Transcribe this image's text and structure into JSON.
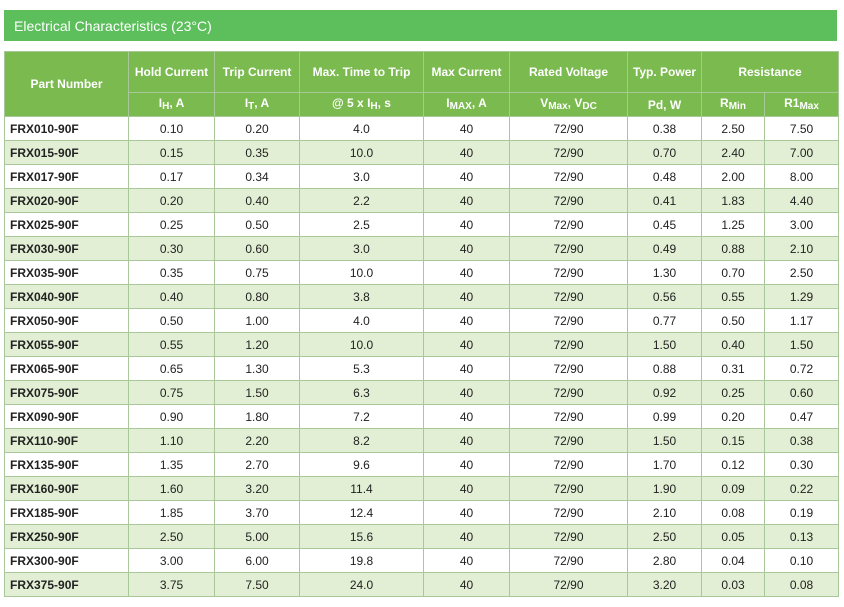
{
  "title": "Electrical Characteristics (23°C)",
  "headers": {
    "part": "Part Number",
    "hold": "Hold Current",
    "trip": "Trip Current",
    "time": "Max. Time to Trip",
    "imax": "Max Current",
    "rated": "Rated Voltage",
    "power": "Typ. Power",
    "resistance": "Resistance"
  },
  "units": {
    "hold": {
      "main": "I",
      "sub": "H",
      "rest": ", A"
    },
    "trip": {
      "main": "I",
      "sub": "T",
      "rest": ", A"
    },
    "time": {
      "main": "@ 5 x I",
      "sub": "H",
      "rest": ", s"
    },
    "imax": {
      "main": "I",
      "sub": "MAX",
      "rest": ", A"
    },
    "rated": {
      "main": "V",
      "sub": "Max",
      "rest": ", V",
      "sub2": "DC"
    },
    "power": {
      "main": "Pd, W",
      "sub": "",
      "rest": ""
    },
    "rmin": {
      "main": "R",
      "sub": "Min",
      "rest": ""
    },
    "r1max": {
      "main": "R1",
      "sub": "Max",
      "rest": ""
    }
  },
  "rows": [
    {
      "part": "FRX010-90F",
      "ih": "0.10",
      "it": "0.20",
      "t": "4.0",
      "imax": "40",
      "v": "72/90",
      "pd": "0.38",
      "rmin": "2.50",
      "r1max": "7.50"
    },
    {
      "part": "FRX015-90F",
      "ih": "0.15",
      "it": "0.35",
      "t": "10.0",
      "imax": "40",
      "v": "72/90",
      "pd": "0.70",
      "rmin": "2.40",
      "r1max": "7.00"
    },
    {
      "part": "FRX017-90F",
      "ih": "0.17",
      "it": "0.34",
      "t": "3.0",
      "imax": "40",
      "v": "72/90",
      "pd": "0.48",
      "rmin": "2.00",
      "r1max": "8.00"
    },
    {
      "part": "FRX020-90F",
      "ih": "0.20",
      "it": "0.40",
      "t": "2.2",
      "imax": "40",
      "v": "72/90",
      "pd": "0.41",
      "rmin": "1.83",
      "r1max": "4.40"
    },
    {
      "part": "FRX025-90F",
      "ih": "0.25",
      "it": "0.50",
      "t": "2.5",
      "imax": "40",
      "v": "72/90",
      "pd": "0.45",
      "rmin": "1.25",
      "r1max": "3.00"
    },
    {
      "part": "FRX030-90F",
      "ih": "0.30",
      "it": "0.60",
      "t": "3.0",
      "imax": "40",
      "v": "72/90",
      "pd": "0.49",
      "rmin": "0.88",
      "r1max": "2.10"
    },
    {
      "part": "FRX035-90F",
      "ih": "0.35",
      "it": "0.75",
      "t": "10.0",
      "imax": "40",
      "v": "72/90",
      "pd": "1.30",
      "rmin": "0.70",
      "r1max": "2.50"
    },
    {
      "part": "FRX040-90F",
      "ih": "0.40",
      "it": "0.80",
      "t": "3.8",
      "imax": "40",
      "v": "72/90",
      "pd": "0.56",
      "rmin": "0.55",
      "r1max": "1.29"
    },
    {
      "part": "FRX050-90F",
      "ih": "0.50",
      "it": "1.00",
      "t": "4.0",
      "imax": "40",
      "v": "72/90",
      "pd": "0.77",
      "rmin": "0.50",
      "r1max": "1.17"
    },
    {
      "part": "FRX055-90F",
      "ih": "0.55",
      "it": "1.20",
      "t": "10.0",
      "imax": "40",
      "v": "72/90",
      "pd": "1.50",
      "rmin": "0.40",
      "r1max": "1.50"
    },
    {
      "part": "FRX065-90F",
      "ih": "0.65",
      "it": "1.30",
      "t": "5.3",
      "imax": "40",
      "v": "72/90",
      "pd": "0.88",
      "rmin": "0.31",
      "r1max": "0.72"
    },
    {
      "part": "FRX075-90F",
      "ih": "0.75",
      "it": "1.50",
      "t": "6.3",
      "imax": "40",
      "v": "72/90",
      "pd": "0.92",
      "rmin": "0.25",
      "r1max": "0.60"
    },
    {
      "part": "FRX090-90F",
      "ih": "0.90",
      "it": "1.80",
      "t": "7.2",
      "imax": "40",
      "v": "72/90",
      "pd": "0.99",
      "rmin": "0.20",
      "r1max": "0.47"
    },
    {
      "part": "FRX110-90F",
      "ih": "1.10",
      "it": "2.20",
      "t": "8.2",
      "imax": "40",
      "v": "72/90",
      "pd": "1.50",
      "rmin": "0.15",
      "r1max": "0.38"
    },
    {
      "part": "FRX135-90F",
      "ih": "1.35",
      "it": "2.70",
      "t": "9.6",
      "imax": "40",
      "v": "72/90",
      "pd": "1.70",
      "rmin": "0.12",
      "r1max": "0.30"
    },
    {
      "part": "FRX160-90F",
      "ih": "1.60",
      "it": "3.20",
      "t": "11.4",
      "imax": "40",
      "v": "72/90",
      "pd": "1.90",
      "rmin": "0.09",
      "r1max": "0.22"
    },
    {
      "part": "FRX185-90F",
      "ih": "1.85",
      "it": "3.70",
      "t": "12.4",
      "imax": "40",
      "v": "72/90",
      "pd": "2.10",
      "rmin": "0.08",
      "r1max": "0.19"
    },
    {
      "part": "FRX250-90F",
      "ih": "2.50",
      "it": "5.00",
      "t": "15.6",
      "imax": "40",
      "v": "72/90",
      "pd": "2.50",
      "rmin": "0.05",
      "r1max": "0.13"
    },
    {
      "part": "FRX300-90F",
      "ih": "3.00",
      "it": "6.00",
      "t": "19.8",
      "imax": "40",
      "v": "72/90",
      "pd": "2.80",
      "rmin": "0.04",
      "r1max": "0.10"
    },
    {
      "part": "FRX375-90F",
      "ih": "3.75",
      "it": "7.50",
      "t": "24.0",
      "imax": "40",
      "v": "72/90",
      "pd": "3.20",
      "rmin": "0.03",
      "r1max": "0.08"
    }
  ]
}
